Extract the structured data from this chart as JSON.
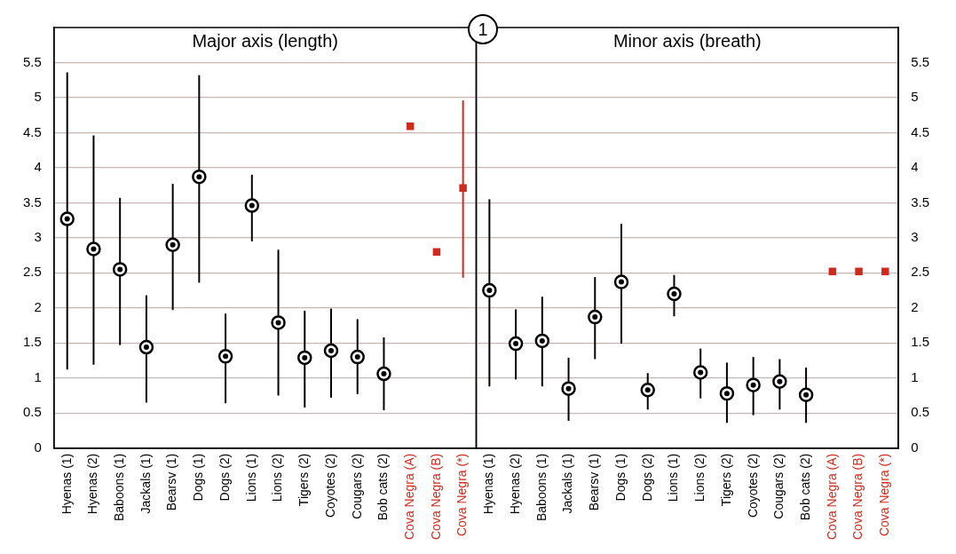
{
  "chart_data": [
    {
      "type": "scatter",
      "title": "Major axis (length)",
      "annotations": [
        "1"
      ],
      "categories": [
        "Hyenas (1)",
        "Hyenas (2)",
        "Baboons (1)",
        "Jackals (1)",
        "Bearsv (1)",
        "Dogs (1)",
        "Dogs (2)",
        "Lions (1)",
        "Lions (2)",
        "Tigers (2)",
        "Coyotes (2)",
        "Cougars (2)",
        "Bob cats (2)",
        "Cova Negra (A)",
        "Cova Negra (B)",
        "Cova Negra (*)"
      ],
      "series": [
        {
          "color": "#000000",
          "marker": "circle",
          "values": [
            3.27,
            2.84,
            2.55,
            1.44,
            2.9,
            3.87,
            1.31,
            3.46,
            1.79,
            1.29,
            1.39,
            1.3,
            1.06,
            null,
            null,
            null
          ],
          "errors": [
            [
              1.12,
              5.36
            ],
            [
              1.19,
              4.46
            ],
            [
              1.47,
              3.57
            ],
            [
              0.65,
              2.18
            ],
            [
              1.97,
              3.77
            ],
            [
              2.36,
              5.32
            ],
            [
              0.64,
              1.92
            ],
            [
              2.95,
              3.9
            ],
            [
              0.75,
              2.83
            ],
            [
              0.58,
              1.96
            ],
            [
              0.72,
              1.99
            ],
            [
              0.77,
              1.84
            ],
            [
              0.54,
              1.58
            ],
            null,
            null,
            null
          ]
        },
        {
          "color": "#d02a1e",
          "marker": "square",
          "values": [
            null,
            null,
            null,
            null,
            null,
            null,
            null,
            null,
            null,
            null,
            null,
            null,
            null,
            4.59,
            2.8,
            3.71
          ],
          "errors": [
            null,
            null,
            null,
            null,
            null,
            null,
            null,
            null,
            null,
            null,
            null,
            null,
            null,
            null,
            null,
            [
              2.43,
              4.96
            ]
          ]
        }
      ],
      "ylim": [
        0,
        6
      ],
      "yticks": [
        0,
        0.5,
        1,
        1.5,
        2,
        2.5,
        3,
        3.5,
        4,
        4.5,
        5,
        5.5
      ],
      "grid": "y",
      "legend": false
    },
    {
      "type": "scatter",
      "title": "Minor axis (breath)",
      "categories": [
        "Hyenas (1)",
        "Hyenas (2)",
        "Baboons (1)",
        "Jackals (1)",
        "Bearsv (1)",
        "Dogs (1)",
        "Dogs (2)",
        "Lions (1)",
        "Lions (2)",
        "Tigers (2)",
        "Coyotes (2)",
        "Cougars (2)",
        "Bob cats (2)",
        "Cova Negra (A)",
        "Cova Negra (B)",
        "Cova Negra (*)"
      ],
      "series": [
        {
          "color": "#000000",
          "marker": "circle",
          "values": [
            2.25,
            1.49,
            1.53,
            0.85,
            1.87,
            2.37,
            0.83,
            2.2,
            1.08,
            0.78,
            0.9,
            0.95,
            0.76,
            null,
            null,
            null
          ],
          "errors": [
            [
              0.88,
              3.55
            ],
            [
              0.98,
              1.98
            ],
            [
              0.88,
              2.16
            ],
            [
              0.39,
              1.29
            ],
            [
              1.27,
              2.44
            ],
            [
              1.49,
              3.2
            ],
            [
              0.55,
              1.07
            ],
            [
              1.88,
              2.47
            ],
            [
              0.71,
              1.42
            ],
            [
              0.36,
              1.22
            ],
            [
              0.47,
              1.3
            ],
            [
              0.55,
              1.27
            ],
            [
              0.36,
              1.15
            ],
            null,
            null,
            null
          ]
        },
        {
          "color": "#d02a1e",
          "marker": "square",
          "values": [
            null,
            null,
            null,
            null,
            null,
            null,
            null,
            null,
            null,
            null,
            null,
            null,
            null,
            2.52,
            2.52,
            2.52
          ]
        }
      ],
      "ylim": [
        0,
        6
      ],
      "yticks": [
        0,
        0.5,
        1,
        1.5,
        2,
        2.5,
        3,
        3.5,
        4,
        4.5,
        5,
        5.5
      ],
      "grid": "y",
      "legend": false
    }
  ]
}
